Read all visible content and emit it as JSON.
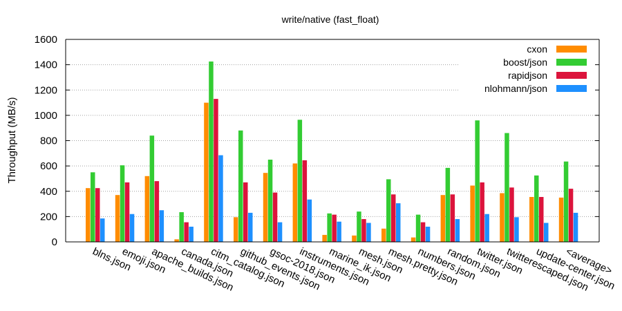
{
  "chart_data": {
    "type": "bar",
    "title": "write/native (fast_float)",
    "xlabel": "",
    "ylabel": "Throughput (MB/s)",
    "ylim": [
      0,
      1600
    ],
    "yticks": [
      0,
      200,
      400,
      600,
      800,
      1000,
      1200,
      1400,
      1600
    ],
    "grid": "horizontal dotted",
    "legend_position": "top-right",
    "categories": [
      "blns.json",
      "emoji.json",
      "apache_builds.json",
      "canada.json",
      "citm_catalog.json",
      "github_events.json",
      "gsoc-2018.json",
      "instruments.json",
      "marine_ik.json",
      "mesh.json",
      "mesh.pretty.json",
      "numbers.json",
      "random.json",
      "twitter.json",
      "twitterescaped.json",
      "update-center.json",
      "<average>"
    ],
    "series": [
      {
        "name": "cxon",
        "color": "#ff8c00",
        "values": [
          425,
          370,
          520,
          20,
          1100,
          195,
          545,
          620,
          55,
          50,
          105,
          35,
          370,
          445,
          385,
          355,
          350
        ]
      },
      {
        "name": "boost/json",
        "color": "#33cc33",
        "values": [
          550,
          605,
          840,
          235,
          1425,
          880,
          650,
          965,
          225,
          240,
          495,
          215,
          585,
          960,
          860,
          525,
          635
        ]
      },
      {
        "name": "rapidjson",
        "color": "#dc143c",
        "values": [
          425,
          470,
          480,
          155,
          1130,
          470,
          390,
          645,
          215,
          180,
          375,
          155,
          375,
          470,
          430,
          355,
          420
        ]
      },
      {
        "name": "nlohmann/json",
        "color": "#1e90ff",
        "values": [
          185,
          220,
          250,
          120,
          685,
          230,
          155,
          335,
          160,
          150,
          305,
          120,
          180,
          220,
          195,
          150,
          230
        ]
      }
    ]
  }
}
